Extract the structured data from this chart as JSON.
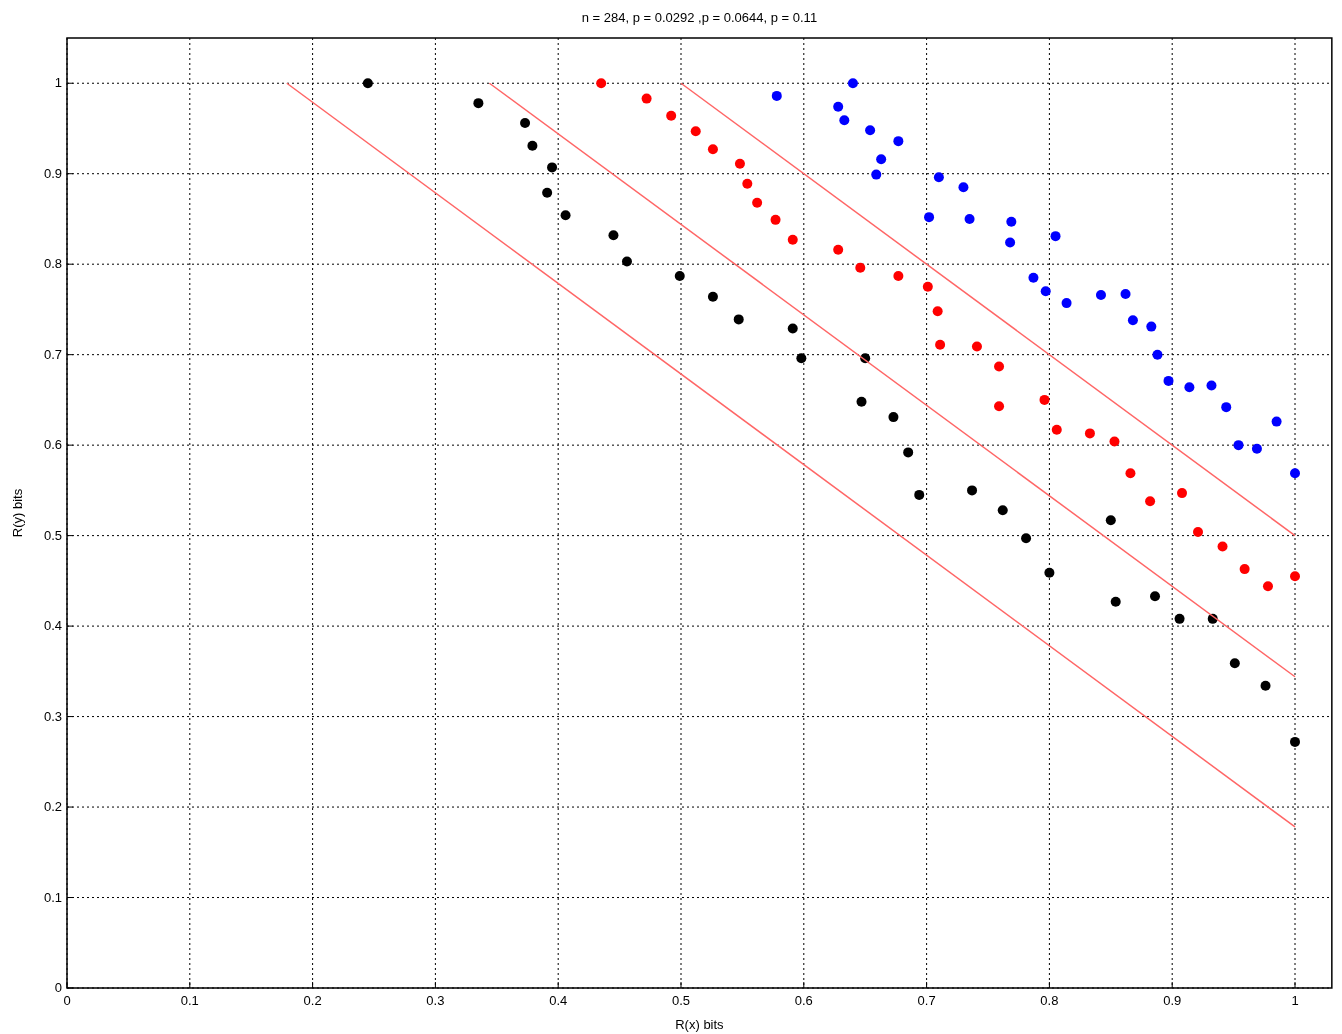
{
  "chart_data": {
    "type": "scatter",
    "title": "n = 284, p = 0.0292 ,p = 0.0644, p = 0.11",
    "xlabel": "R(x) bits",
    "ylabel": "R(y) bits",
    "xlim": [
      0,
      1.03
    ],
    "ylim": [
      0,
      1.05
    ],
    "xticks": [
      0,
      0.1,
      0.2,
      0.3,
      0.4,
      0.5,
      0.6,
      0.7,
      0.8,
      0.9,
      1
    ],
    "yticks": [
      0,
      0.1,
      0.2,
      0.3,
      0.4,
      0.5,
      0.6,
      0.7,
      0.8,
      0.9,
      1
    ],
    "grid": true,
    "marker": "circle",
    "series": [
      {
        "color": "#000000",
        "x": [
          0.245,
          0.335,
          0.373,
          0.379,
          0.395,
          0.391,
          0.406,
          0.445,
          0.456,
          0.499,
          0.526,
          0.547,
          0.591,
          0.598,
          0.65,
          0.647,
          0.673,
          0.685,
          0.694,
          0.737,
          0.762,
          0.781,
          0.8,
          0.85,
          0.854,
          0.886,
          0.906,
          0.933,
          0.951,
          0.976,
          1.0
        ],
        "values": [
          1.0,
          0.978,
          0.956,
          0.931,
          0.907,
          0.879,
          0.854,
          0.832,
          0.803,
          0.787,
          0.764,
          0.739,
          0.729,
          0.696,
          0.696,
          0.648,
          0.631,
          0.592,
          0.545,
          0.55,
          0.528,
          0.497,
          0.459,
          0.517,
          0.427,
          0.433,
          0.408,
          0.408,
          0.359,
          0.334,
          0.272
        ]
      },
      {
        "color": "#ff0000",
        "x": [
          0.435,
          0.472,
          0.492,
          0.512,
          0.526,
          0.548,
          0.554,
          0.562,
          0.577,
          0.591,
          0.628,
          0.646,
          0.677,
          0.701,
          0.709,
          0.711,
          0.741,
          0.759,
          0.759,
          0.796,
          0.806,
          0.833,
          0.853,
          0.866,
          0.882,
          0.908,
          0.921,
          0.941,
          0.959,
          0.978,
          1.0
        ],
        "values": [
          1.0,
          0.983,
          0.964,
          0.947,
          0.927,
          0.911,
          0.889,
          0.868,
          0.849,
          0.827,
          0.816,
          0.796,
          0.787,
          0.775,
          0.748,
          0.711,
          0.709,
          0.687,
          0.643,
          0.65,
          0.617,
          0.613,
          0.604,
          0.569,
          0.538,
          0.547,
          0.504,
          0.488,
          0.463,
          0.444,
          0.455
        ]
      },
      {
        "color": "#0000ff",
        "x": [
          0.578,
          0.64,
          0.628,
          0.633,
          0.654,
          0.677,
          0.663,
          0.659,
          0.71,
          0.73,
          0.702,
          0.735,
          0.769,
          0.768,
          0.805,
          0.787,
          0.797,
          0.814,
          0.842,
          0.862,
          0.868,
          0.883,
          0.888,
          0.897,
          0.914,
          0.932,
          0.944,
          0.954,
          0.969,
          0.985,
          1.0
        ],
        "values": [
          0.986,
          1.0,
          0.974,
          0.959,
          0.948,
          0.936,
          0.916,
          0.899,
          0.896,
          0.885,
          0.852,
          0.85,
          0.847,
          0.824,
          0.831,
          0.785,
          0.77,
          0.757,
          0.766,
          0.767,
          0.738,
          0.731,
          0.7,
          0.671,
          0.664,
          0.666,
          0.642,
          0.6,
          0.596,
          0.626,
          0.569
        ]
      },
      {
        "type": "line",
        "marker": "none",
        "color": "#ff6666",
        "x": [
          0.179,
          1.0
        ],
        "values": [
          1.0,
          0.178
        ]
      },
      {
        "type": "line",
        "marker": "none",
        "color": "#ff6666",
        "x": [
          0.344,
          1.0
        ],
        "values": [
          1.0,
          0.344
        ]
      },
      {
        "type": "line",
        "marker": "none",
        "color": "#ff6666",
        "x": [
          0.5,
          1.0
        ],
        "values": [
          1.0,
          0.5
        ]
      }
    ]
  }
}
